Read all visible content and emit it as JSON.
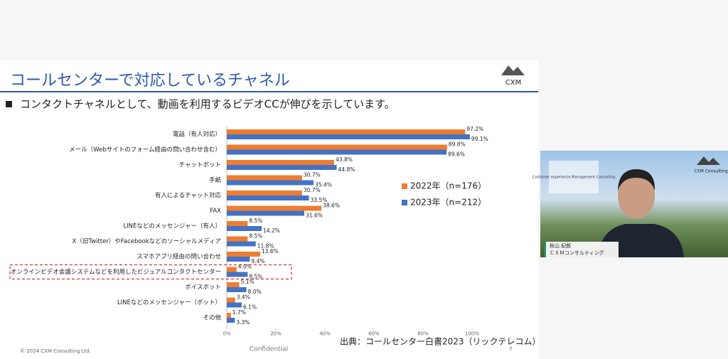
{
  "slide": {
    "title": "コールセンターで対応しているチャネル",
    "logo": "CXM",
    "bullet": "コンタクトチャネルとして、動画を利用するビデオCCが伸びを示しています。",
    "source": "出典：コールセンター白書2023（リックテレコム）",
    "copyright": "© 2024 CXM Consulting Ltd.",
    "confidential": "Confidential",
    "page": "7"
  },
  "webcam": {
    "logo": "CXM Consulting",
    "tagline": "Customer experience Management Consulting",
    "name": "秋山 紀郎",
    "company": "ＣＸＭコンサルティング"
  },
  "chart_data": {
    "type": "hbar",
    "categories": [
      "電話（有人対応）",
      "メール（Webサイトのフォーム経由の問い合わせ含む）",
      "チャットボット",
      "手紙",
      "有人によるチャット対応",
      "FAX",
      "LINEなどのメッセンジャー（有人）",
      "X（旧Twitter）やFacebookなどのソーシャルメディア",
      "スマホアプリ経由の問い合わせ",
      "オンラインビデオ会議システムなどを利用したビジュアルコンタクトセンター",
      "ボイスボット",
      "LINEなどのメッセンジャー（ボット）",
      "その他"
    ],
    "series": [
      {
        "name": "2022年（n=176）",
        "color": "#ed7d31",
        "values": [
          97.2,
          89.8,
          43.8,
          30.7,
          30.7,
          38.6,
          8.5,
          8.5,
          13.6,
          4.0,
          5.1,
          3.4,
          1.7
        ],
        "value_labels": [
          "97.2%",
          "89.8%",
          "43.8%",
          "30.7%",
          "30.7%",
          "38.6%",
          "8.5%",
          "8.5%",
          "13.6%",
          "4.0%",
          "5.1%",
          "3.4%",
          "1.7%"
        ]
      },
      {
        "name": "2023年（n=212）",
        "color": "#4472c4",
        "values": [
          99.1,
          89.6,
          44.8,
          35.4,
          33.5,
          31.6,
          14.2,
          11.8,
          9.4,
          8.5,
          8.0,
          6.1,
          3.3
        ],
        "value_labels": [
          "99.1%",
          "89.6%",
          "44.8%",
          "35.4%",
          "33.5%",
          "31.6%",
          "14.2%",
          "11.8%",
          "9.4%",
          "8.5%",
          "8.0%",
          "6.1%",
          "3.3%"
        ]
      }
    ],
    "xlim": [
      0,
      100
    ],
    "xticks": [
      {
        "value": 0,
        "label": "0%"
      },
      {
        "value": 20,
        "label": "20%"
      },
      {
        "value": 40,
        "label": "40%"
      },
      {
        "value": 60,
        "label": "60%"
      },
      {
        "value": 80,
        "label": "80%"
      },
      {
        "value": 100,
        "label": "100%"
      }
    ]
  }
}
